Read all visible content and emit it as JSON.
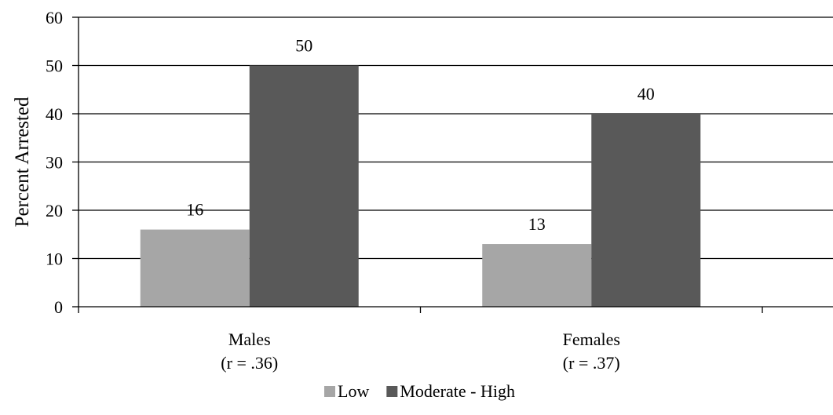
{
  "chart_data": {
    "type": "bar",
    "categories": [
      [
        "Males",
        "(r = .36)"
      ],
      [
        "Females",
        "(r = .37)"
      ]
    ],
    "series": [
      {
        "name": "Low",
        "values": [
          16,
          13
        ],
        "color": "#a6a6a6"
      },
      {
        "name": "Moderate - High",
        "values": [
          50,
          40
        ],
        "color": "#595959"
      }
    ],
    "data_labels": [
      [
        "16",
        "13"
      ],
      [
        "50",
        "40"
      ]
    ],
    "xlabel": "",
    "ylabel": "Percent Arrested",
    "ylim": [
      0,
      60
    ],
    "yticks": [
      0,
      10,
      20,
      30,
      40,
      50,
      60
    ],
    "grid": true,
    "legend_position": "bottom-center"
  }
}
